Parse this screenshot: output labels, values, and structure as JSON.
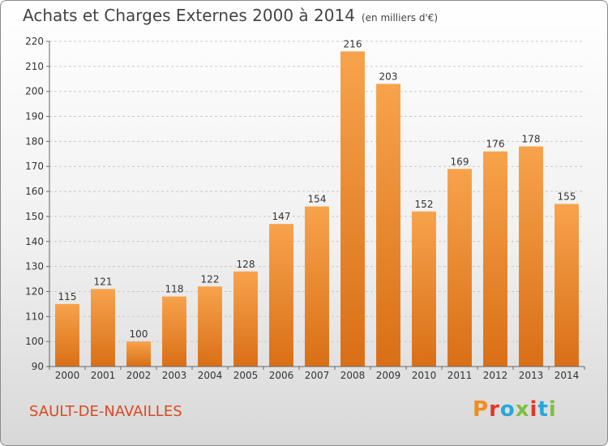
{
  "header": {
    "title": "Achats et Charges Externes 2000 à 2014",
    "unit": "(en milliers d'€)"
  },
  "footer": {
    "place": "SAULT-DE-NAVAILLES",
    "logo": "Proxiti"
  },
  "colors": {
    "bar_light": "#f7a34c",
    "bar_dark": "#d96f16",
    "place": "#d94a1e",
    "logo_letters": [
      "#f28c1e",
      "#e2342b",
      "#27a6dc",
      "#7fbf3f",
      "#e2342b",
      "#27a6dc",
      "#7fbf3f"
    ]
  },
  "chart_data": {
    "type": "bar",
    "title": "Achats et Charges Externes 2000 à 2014",
    "subtitle": "(en milliers d'€)",
    "categories": [
      "2000",
      "2001",
      "2002",
      "2003",
      "2004",
      "2005",
      "2006",
      "2007",
      "2008",
      "2009",
      "2010",
      "2011",
      "2012",
      "2013",
      "2014"
    ],
    "values": [
      115,
      121,
      100,
      118,
      122,
      128,
      147,
      154,
      216,
      203,
      152,
      169,
      176,
      178,
      155
    ],
    "ylim": [
      90,
      220
    ],
    "yticks": [
      90,
      100,
      110,
      120,
      130,
      140,
      150,
      160,
      170,
      180,
      190,
      200,
      210,
      220
    ],
    "grid": true,
    "legend": "none"
  }
}
